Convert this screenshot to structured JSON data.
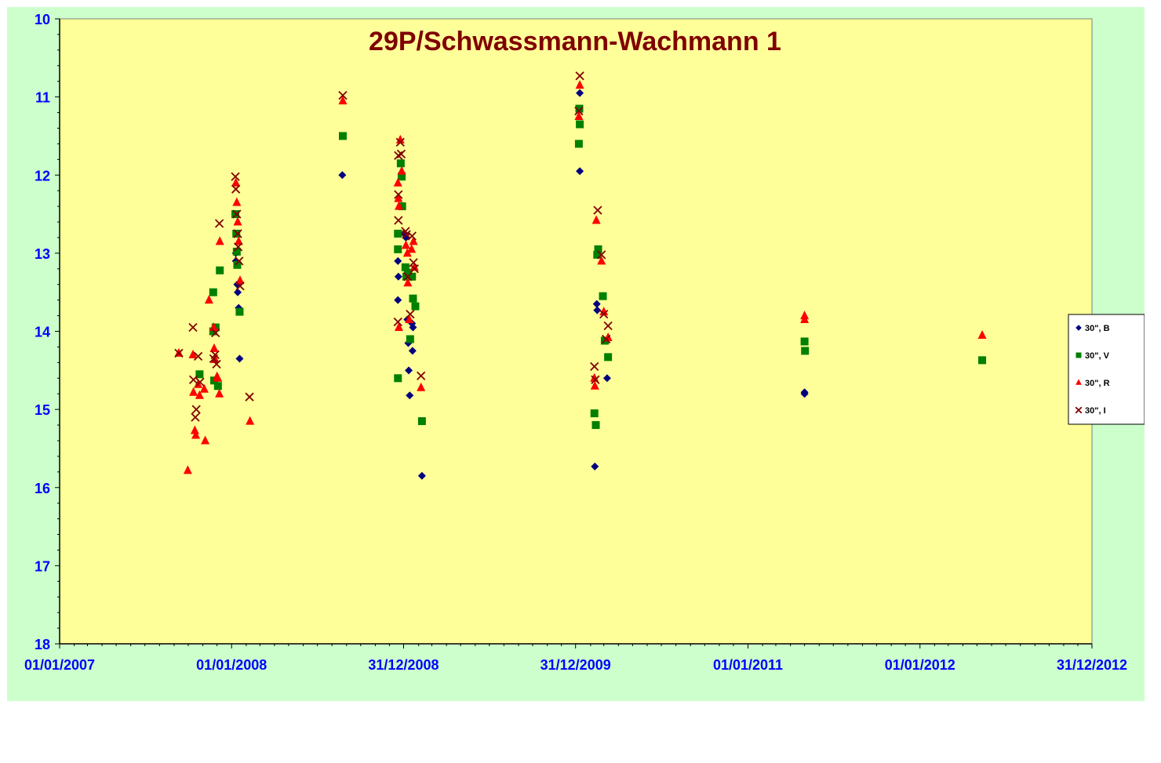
{
  "chart_data": {
    "type": "scatter",
    "title": "29P/Schwassmann-Wachmann 1",
    "xlabel": "",
    "ylabel": "",
    "y_inverted": true,
    "ylim": [
      10,
      18
    ],
    "y_ticks": [
      "10",
      "11",
      "12",
      "13",
      "14",
      "15",
      "16",
      "17",
      "18"
    ],
    "xlim": [
      "2007-01-01",
      "2012-12-31"
    ],
    "x_ticks": [
      {
        "date": "2007-01-01",
        "label": "01/01/2007"
      },
      {
        "date": "2008-01-01",
        "label": "01/01/2008"
      },
      {
        "date": "2008-12-31",
        "label": "31/12/2008"
      },
      {
        "date": "2009-12-31",
        "label": "31/12/2009"
      },
      {
        "date": "2011-01-01",
        "label": "01/01/2011"
      },
      {
        "date": "2012-01-01",
        "label": "01/01/2012"
      },
      {
        "date": "2012-12-31",
        "label": "31/12/2012"
      }
    ],
    "grid": false,
    "legend_position": "right",
    "colors": {
      "page_bg": "#ccffcc",
      "plot_bg": "#ffff99",
      "title": "#800000",
      "tick_labels": "#0000ff",
      "axis": "#000000"
    },
    "series": [
      {
        "name": "30\", B",
        "marker": "diamond",
        "color": "#000080",
        "points": [
          {
            "x": "2008-01-10",
            "y": 13.0
          },
          {
            "x": "2008-01-10",
            "y": 13.1
          },
          {
            "x": "2008-01-13",
            "y": 13.4
          },
          {
            "x": "2008-01-14",
            "y": 13.5
          },
          {
            "x": "2008-01-16",
            "y": 13.7
          },
          {
            "x": "2008-01-18",
            "y": 14.35
          },
          {
            "x": "2008-08-23",
            "y": 12.0
          },
          {
            "x": "2008-12-19",
            "y": 13.1
          },
          {
            "x": "2008-12-20",
            "y": 13.3
          },
          {
            "x": "2008-12-19",
            "y": 13.6
          },
          {
            "x": "2009-01-01",
            "y": 12.75
          },
          {
            "x": "2009-01-05",
            "y": 12.8
          },
          {
            "x": "2009-01-08",
            "y": 13.85
          },
          {
            "x": "2009-01-10",
            "y": 14.15
          },
          {
            "x": "2009-01-11",
            "y": 14.5
          },
          {
            "x": "2009-01-13",
            "y": 14.82
          },
          {
            "x": "2009-01-18",
            "y": 13.9
          },
          {
            "x": "2009-01-19",
            "y": 14.25
          },
          {
            "x": "2009-01-20",
            "y": 13.95
          },
          {
            "x": "2009-02-08",
            "y": 15.85
          },
          {
            "x": "2010-01-09",
            "y": 11.95
          },
          {
            "x": "2010-01-09",
            "y": 10.95
          },
          {
            "x": "2010-02-10",
            "y": 15.73
          },
          {
            "x": "2010-02-14",
            "y": 13.65
          },
          {
            "x": "2010-02-15",
            "y": 13.73
          },
          {
            "x": "2010-03-08",
            "y": 14.6
          },
          {
            "x": "2011-05-01",
            "y": 14.8
          },
          {
            "x": "2011-05-01",
            "y": 14.78
          }
        ]
      },
      {
        "name": "30\", V",
        "marker": "square",
        "color": "#008000",
        "points": [
          {
            "x": "2007-10-25",
            "y": 14.55
          },
          {
            "x": "2007-11-23",
            "y": 13.5
          },
          {
            "x": "2007-11-23",
            "y": 14.0
          },
          {
            "x": "2007-11-25",
            "y": 14.63
          },
          {
            "x": "2007-11-28",
            "y": 13.95
          },
          {
            "x": "2007-12-03",
            "y": 14.7
          },
          {
            "x": "2007-12-07",
            "y": 13.22
          },
          {
            "x": "2008-01-09",
            "y": 12.5
          },
          {
            "x": "2008-01-11",
            "y": 12.75
          },
          {
            "x": "2008-01-12",
            "y": 12.98
          },
          {
            "x": "2008-01-13",
            "y": 13.15
          },
          {
            "x": "2008-01-18",
            "y": 13.75
          },
          {
            "x": "2008-08-24",
            "y": 11.5
          },
          {
            "x": "2008-12-19",
            "y": 12.75
          },
          {
            "x": "2008-12-19",
            "y": 12.95
          },
          {
            "x": "2008-12-19",
            "y": 14.6
          },
          {
            "x": "2008-12-25",
            "y": 11.85
          },
          {
            "x": "2008-12-27",
            "y": 12.02
          },
          {
            "x": "2008-12-28",
            "y": 12.4
          },
          {
            "x": "2009-01-04",
            "y": 13.18
          },
          {
            "x": "2009-01-06",
            "y": 13.3
          },
          {
            "x": "2009-01-09",
            "y": 13.25
          },
          {
            "x": "2009-01-14",
            "y": 14.1
          },
          {
            "x": "2009-01-18",
            "y": 13.3
          },
          {
            "x": "2009-01-20",
            "y": 13.58
          },
          {
            "x": "2009-01-25",
            "y": 13.68
          },
          {
            "x": "2009-02-08",
            "y": 15.15
          },
          {
            "x": "2010-01-07",
            "y": 11.6
          },
          {
            "x": "2010-01-08",
            "y": 11.15
          },
          {
            "x": "2010-01-09",
            "y": 11.35
          },
          {
            "x": "2010-02-09",
            "y": 15.05
          },
          {
            "x": "2010-02-12",
            "y": 15.2
          },
          {
            "x": "2010-02-15",
            "y": 13.02
          },
          {
            "x": "2010-02-17",
            "y": 12.95
          },
          {
            "x": "2010-02-27",
            "y": 13.55
          },
          {
            "x": "2010-03-03",
            "y": 14.12
          },
          {
            "x": "2010-03-10",
            "y": 14.33
          },
          {
            "x": "2011-05-01",
            "y": 14.13
          },
          {
            "x": "2011-05-02",
            "y": 14.25
          },
          {
            "x": "2012-05-12",
            "y": 14.37
          }
        ]
      },
      {
        "name": "30\", R",
        "marker": "triangle",
        "color": "#ff0000",
        "points": [
          {
            "x": "2007-09-11",
            "y": 14.28
          },
          {
            "x": "2007-09-30",
            "y": 15.78
          },
          {
            "x": "2007-10-11",
            "y": 14.3
          },
          {
            "x": "2007-10-12",
            "y": 14.78
          },
          {
            "x": "2007-10-15",
            "y": 15.27
          },
          {
            "x": "2007-10-17",
            "y": 15.33
          },
          {
            "x": "2007-10-22",
            "y": 14.68
          },
          {
            "x": "2007-10-25",
            "y": 14.82
          },
          {
            "x": "2007-11-04",
            "y": 14.74
          },
          {
            "x": "2007-11-06",
            "y": 15.4
          },
          {
            "x": "2007-11-14",
            "y": 13.6
          },
          {
            "x": "2007-11-24",
            "y": 13.95
          },
          {
            "x": "2007-11-25",
            "y": 14.22
          },
          {
            "x": "2007-11-27",
            "y": 14.36
          },
          {
            "x": "2007-12-01",
            "y": 14.58
          },
          {
            "x": "2007-12-03",
            "y": 14.6
          },
          {
            "x": "2007-12-06",
            "y": 14.8
          },
          {
            "x": "2007-12-07",
            "y": 12.85
          },
          {
            "x": "2008-01-10",
            "y": 12.1
          },
          {
            "x": "2008-01-12",
            "y": 12.35
          },
          {
            "x": "2008-01-14",
            "y": 12.6
          },
          {
            "x": "2008-01-16",
            "y": 12.85
          },
          {
            "x": "2008-01-19",
            "y": 13.35
          },
          {
            "x": "2008-02-09",
            "y": 15.15
          },
          {
            "x": "2008-08-24",
            "y": 11.05
          },
          {
            "x": "2008-12-19",
            "y": 12.1
          },
          {
            "x": "2008-12-20",
            "y": 12.3
          },
          {
            "x": "2008-12-21",
            "y": 12.4
          },
          {
            "x": "2008-12-21",
            "y": 13.95
          },
          {
            "x": "2008-12-24",
            "y": 11.55
          },
          {
            "x": "2008-12-27",
            "y": 11.95
          },
          {
            "x": "2009-01-05",
            "y": 12.9
          },
          {
            "x": "2009-01-08",
            "y": 13.0
          },
          {
            "x": "2009-01-09",
            "y": 13.38
          },
          {
            "x": "2009-01-12",
            "y": 13.85
          },
          {
            "x": "2009-01-17",
            "y": 12.95
          },
          {
            "x": "2009-01-21",
            "y": 12.85
          },
          {
            "x": "2009-01-23",
            "y": 13.18
          },
          {
            "x": "2009-02-06",
            "y": 14.72
          },
          {
            "x": "2010-01-07",
            "y": 11.25
          },
          {
            "x": "2010-01-09",
            "y": 10.85
          },
          {
            "x": "2010-02-09",
            "y": 14.6
          },
          {
            "x": "2010-02-10",
            "y": 14.7
          },
          {
            "x": "2010-02-13",
            "y": 12.58
          },
          {
            "x": "2010-02-24",
            "y": 13.1
          },
          {
            "x": "2010-03-01",
            "y": 13.75
          },
          {
            "x": "2010-03-10",
            "y": 14.08
          },
          {
            "x": "2011-05-01",
            "y": 13.8
          },
          {
            "x": "2011-05-01",
            "y": 13.85
          },
          {
            "x": "2012-05-12",
            "y": 14.05
          }
        ]
      },
      {
        "name": "30\", I",
        "marker": "x",
        "color": "#800000",
        "points": [
          {
            "x": "2007-09-11",
            "y": 14.28
          },
          {
            "x": "2007-10-11",
            "y": 13.95
          },
          {
            "x": "2007-10-12",
            "y": 14.62
          },
          {
            "x": "2007-10-16",
            "y": 15.1
          },
          {
            "x": "2007-10-18",
            "y": 15.0
          },
          {
            "x": "2007-10-22",
            "y": 14.32
          },
          {
            "x": "2007-10-26",
            "y": 14.65
          },
          {
            "x": "2007-11-24",
            "y": 14.35
          },
          {
            "x": "2007-11-27",
            "y": 14.3
          },
          {
            "x": "2007-11-28",
            "y": 14.02
          },
          {
            "x": "2007-11-30",
            "y": 14.42
          },
          {
            "x": "2007-12-06",
            "y": 12.62
          },
          {
            "x": "2008-01-09",
            "y": 12.02
          },
          {
            "x": "2008-01-10",
            "y": 12.18
          },
          {
            "x": "2008-01-12",
            "y": 12.5
          },
          {
            "x": "2008-01-14",
            "y": 12.75
          },
          {
            "x": "2008-01-15",
            "y": 12.92
          },
          {
            "x": "2008-01-17",
            "y": 13.1
          },
          {
            "x": "2008-01-19",
            "y": 13.42
          },
          {
            "x": "2008-02-08",
            "y": 14.84
          },
          {
            "x": "2008-08-24",
            "y": 10.98
          },
          {
            "x": "2008-12-20",
            "y": 11.75
          },
          {
            "x": "2008-12-20",
            "y": 12.25
          },
          {
            "x": "2008-12-20",
            "y": 12.58
          },
          {
            "x": "2008-12-19",
            "y": 13.88
          },
          {
            "x": "2008-12-24",
            "y": 11.58
          },
          {
            "x": "2008-12-26",
            "y": 11.73
          },
          {
            "x": "2009-01-04",
            "y": 12.72
          },
          {
            "x": "2009-01-06",
            "y": 12.76
          },
          {
            "x": "2009-01-09",
            "y": 13.3
          },
          {
            "x": "2009-01-14",
            "y": 13.78
          },
          {
            "x": "2009-01-18",
            "y": 12.78
          },
          {
            "x": "2009-01-21",
            "y": 13.12
          },
          {
            "x": "2009-01-23",
            "y": 13.2
          },
          {
            "x": "2009-02-06",
            "y": 14.57
          },
          {
            "x": "2010-01-07",
            "y": 11.18
          },
          {
            "x": "2010-01-09",
            "y": 10.73
          },
          {
            "x": "2010-02-09",
            "y": 14.45
          },
          {
            "x": "2010-02-11",
            "y": 14.62
          },
          {
            "x": "2010-02-16",
            "y": 12.45
          },
          {
            "x": "2010-02-24",
            "y": 13.02
          },
          {
            "x": "2010-03-01",
            "y": 13.78
          },
          {
            "x": "2010-03-06",
            "y": 14.1
          },
          {
            "x": "2010-03-10",
            "y": 13.93
          }
        ]
      }
    ]
  }
}
